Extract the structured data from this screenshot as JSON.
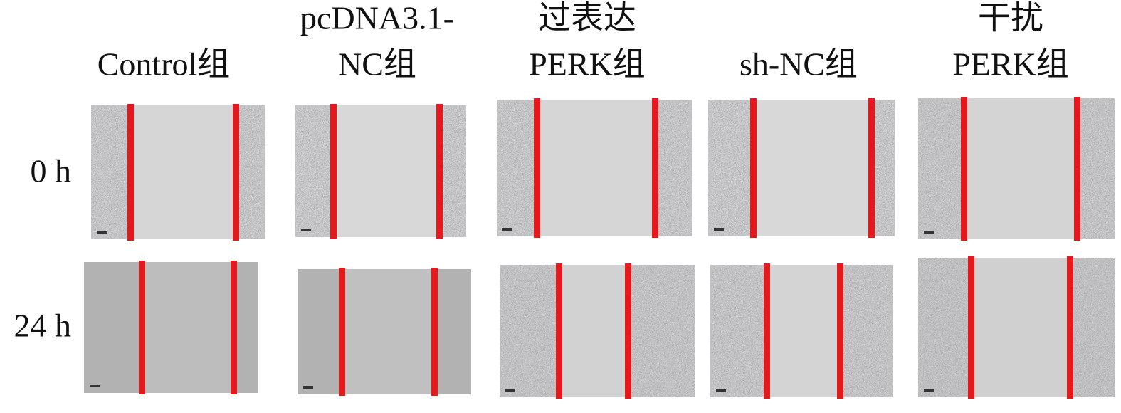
{
  "columns": [
    [
      "Control组"
    ],
    [
      "pcDNA3.1-",
      "NC组"
    ],
    [
      "过表达",
      "PERK组"
    ],
    [
      "sh-NC组"
    ],
    [
      "干扰",
      "PERK组"
    ]
  ],
  "rows": [
    "0 h",
    "24 h"
  ]
}
